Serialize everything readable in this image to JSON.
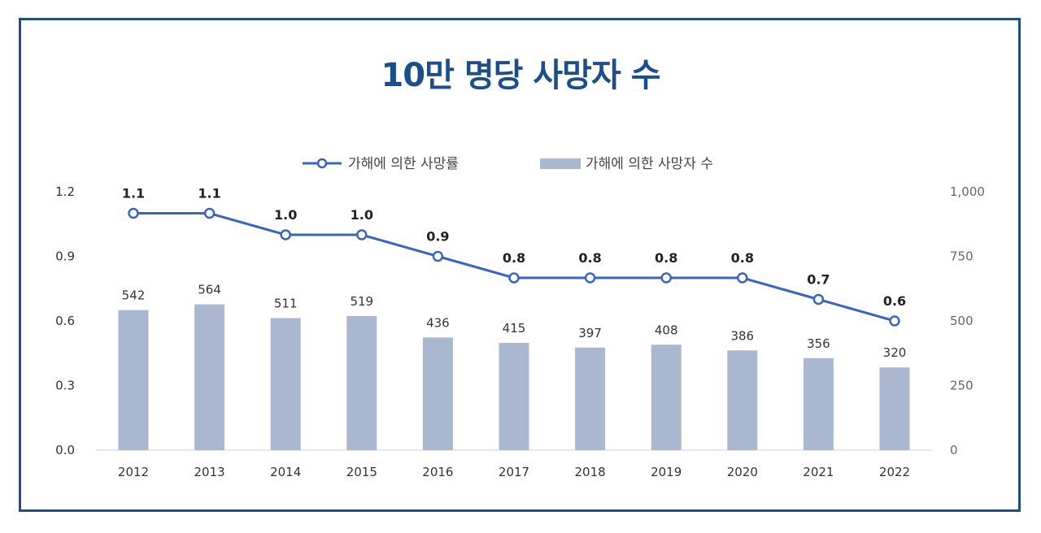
{
  "page": {
    "title": "10만 명당 사망자 수"
  },
  "colors": {
    "frame": "#1f4e86",
    "title": "#1a4f8b",
    "bar": "#a9b8d0",
    "line": "#3a64c2",
    "axis_text": "#333333"
  },
  "chart_data": {
    "type": "bar",
    "categories": [
      "2012",
      "2013",
      "2014",
      "2015",
      "2016",
      "2017",
      "2018",
      "2019",
      "2020",
      "2021",
      "2022"
    ],
    "series": [
      {
        "name": "가해에 의한 사망자 수",
        "type": "bar",
        "axis": "right",
        "values": [
          542,
          564,
          511,
          519,
          436,
          415,
          397,
          408,
          386,
          356,
          320
        ],
        "labels": [
          "542",
          "564",
          "511",
          "519",
          "436",
          "415",
          "397",
          "408",
          "386",
          "356",
          "320"
        ]
      },
      {
        "name": "가해에 의한 사망률",
        "type": "line",
        "axis": "left",
        "values": [
          1.1,
          1.1,
          1.0,
          1.0,
          0.9,
          0.8,
          0.8,
          0.8,
          0.8,
          0.7,
          0.6
        ],
        "labels": [
          "1.1",
          "1.1",
          "1.0",
          "1.0",
          "0.9",
          "0.8",
          "0.8",
          "0.8",
          "0.8",
          "0.7",
          "0.6"
        ]
      }
    ],
    "y_left": {
      "range": [
        0,
        1.2
      ],
      "ticks": [
        "0.0",
        "0.3",
        "0.6",
        "0.9",
        "1.2"
      ]
    },
    "y_right": {
      "range": [
        0,
        1000
      ],
      "ticks": [
        "0",
        "250",
        "500",
        "750",
        "1,000"
      ]
    },
    "legend": {
      "position": "top",
      "items": [
        "가해에 의한 사망률",
        "가해에 의한 사망자 수"
      ]
    },
    "grid": false
  }
}
